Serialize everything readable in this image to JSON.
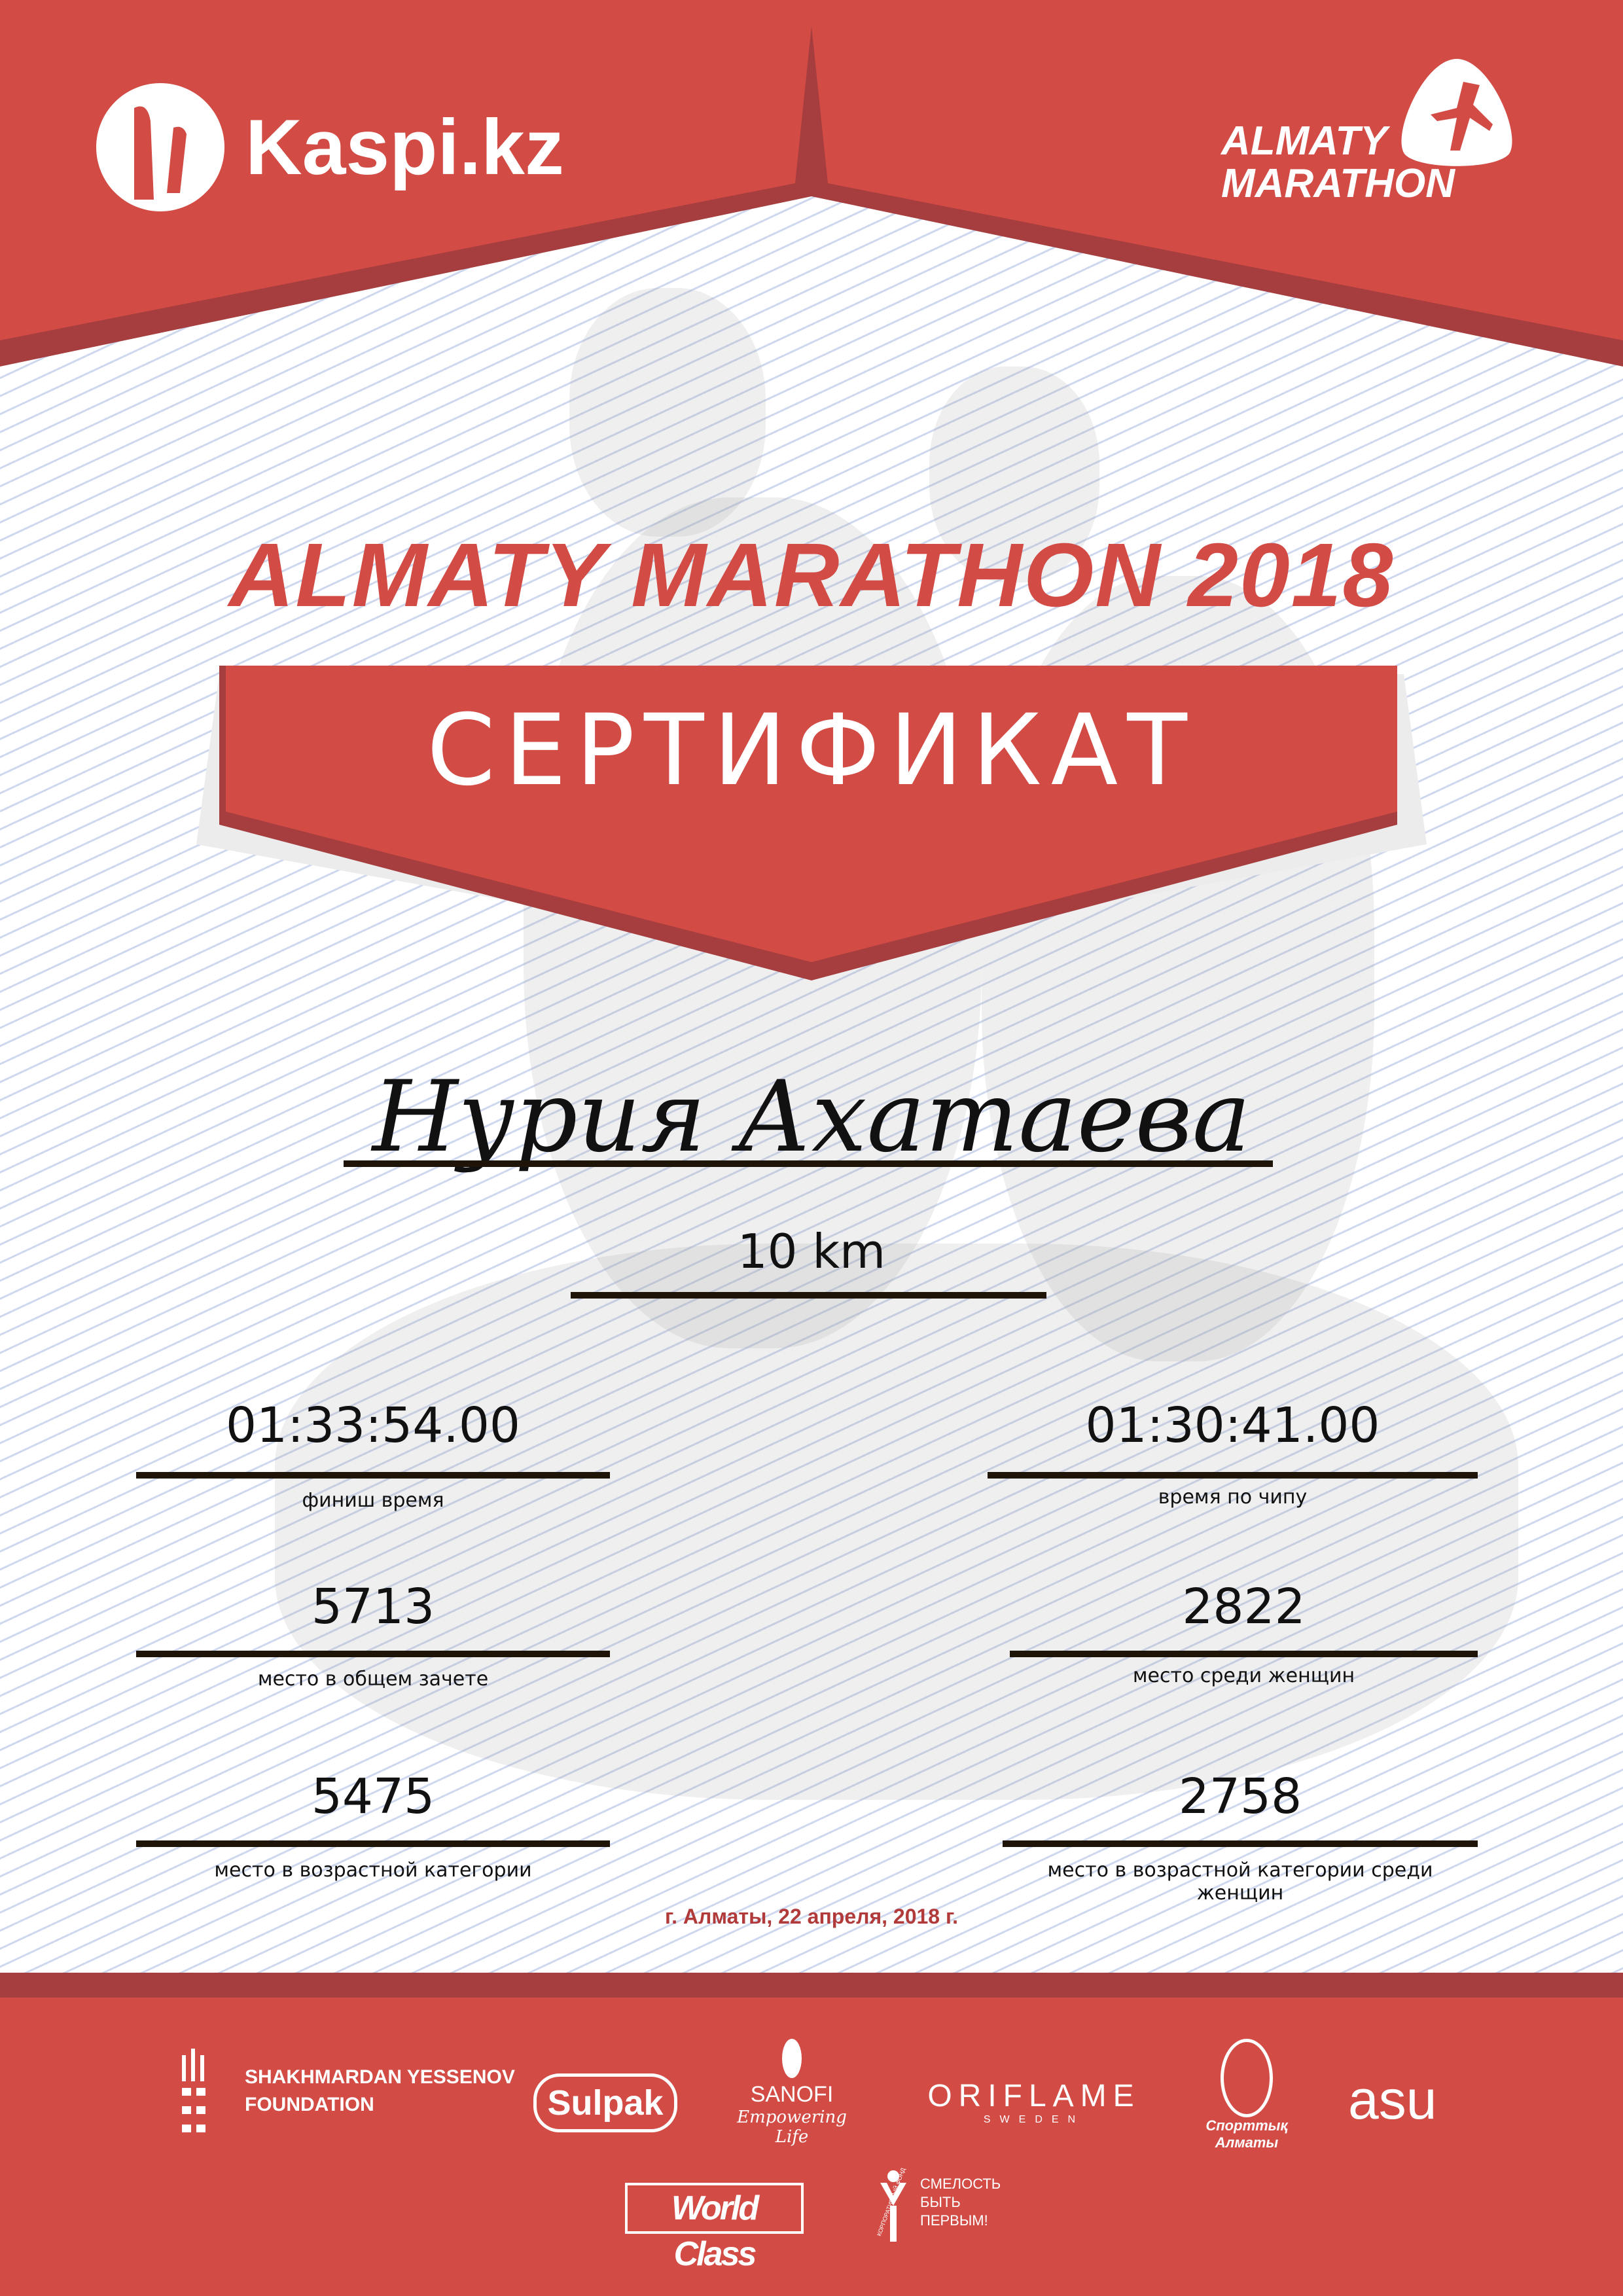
{
  "colors": {
    "brand_red": "#d24b45",
    "dark_red": "#a63d3e",
    "text_dark": "#111111",
    "line_color": "#1e1508",
    "date_color": "#b13a3a"
  },
  "header": {
    "left_logo": {
      "text": "Kaspi.kz",
      "icon": "kaspi-logo-icon"
    },
    "right_logo": {
      "line1": "ALMATY",
      "line2": "MARATHON",
      "icon": "runner-logo-icon"
    }
  },
  "title": "ALMATY MARATHON 2018",
  "banner": "СЕРТИФИКАТ",
  "participant_name": "Нурия Ахатаева",
  "distance": "10 km",
  "results": {
    "finish_time": {
      "value": "01:33:54.00",
      "label": "финиш время"
    },
    "chip_time": {
      "value": "01:30:41.00",
      "label": "время по чипу"
    },
    "overall_place": {
      "value": "5713",
      "label": "место в общем зачете"
    },
    "women_place": {
      "value": "2822",
      "label": "место среди женщин"
    },
    "age_place": {
      "value": "5475",
      "label": "место в возрастной категории"
    },
    "women_age_place": {
      "value": "2758",
      "label": "место в возрастной категории среди женщин"
    }
  },
  "date_line": "г. Алматы, 22 апреля, 2018 г.",
  "sponsors": {
    "yessenov": {
      "line1": "SHAKHMARDAN YESSENOV",
      "line2": "FOUNDATION"
    },
    "sulpak": "Sulpak",
    "sanofi": {
      "name": "SANOFI",
      "tagline": "Empowering Life"
    },
    "oriflame": {
      "name": "ORIFLAME",
      "sub": "SWEDEN"
    },
    "sport_almaty": {
      "line1": "Спорттық",
      "line2": "Алматы"
    },
    "asu": "asu",
    "worldclass": "World Class",
    "fund": {
      "arc": "КОРПОРАТИВНЫЙ ФОНД",
      "line1": "СМЕЛОСТЬ",
      "line2": "БЫТЬ",
      "line3": "ПЕРВЫМ!"
    }
  }
}
